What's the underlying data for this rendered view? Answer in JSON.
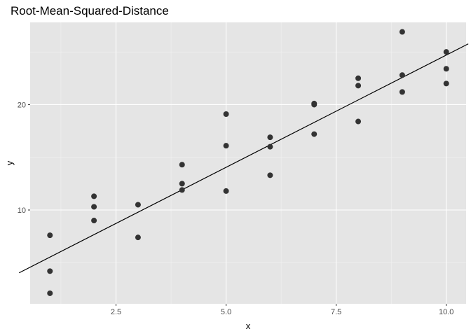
{
  "chart_data": {
    "type": "scatter",
    "title": "Root-Mean-Squared-Distance",
    "xlabel": "x",
    "ylabel": "y",
    "xlim": [
      0.55,
      10.45
    ],
    "ylim": [
      1.1,
      27.8
    ],
    "x_ticks": [
      2.5,
      5.0,
      7.5,
      10.0
    ],
    "x_tick_labels": [
      "2.5",
      "5.0",
      "7.5",
      "10.0"
    ],
    "y_ticks": [
      10,
      20
    ],
    "y_tick_labels": [
      "10",
      "20"
    ],
    "grid": true,
    "background": "#e5e5e5",
    "point_color": "#333333",
    "line_color": "#000000",
    "points": [
      {
        "x": 1,
        "y": 7.6
      },
      {
        "x": 1,
        "y": 4.2
      },
      {
        "x": 1,
        "y": 2.1
      },
      {
        "x": 2,
        "y": 11.3
      },
      {
        "x": 2,
        "y": 10.3
      },
      {
        "x": 2,
        "y": 9.0
      },
      {
        "x": 3,
        "y": 10.5
      },
      {
        "x": 3,
        "y": 7.4
      },
      {
        "x": 4,
        "y": 14.3
      },
      {
        "x": 4,
        "y": 12.5
      },
      {
        "x": 4,
        "y": 11.9
      },
      {
        "x": 5,
        "y": 19.1
      },
      {
        "x": 5,
        "y": 16.1
      },
      {
        "x": 5,
        "y": 11.8
      },
      {
        "x": 6,
        "y": 16.9
      },
      {
        "x": 6,
        "y": 16.0
      },
      {
        "x": 6,
        "y": 13.3
      },
      {
        "x": 7,
        "y": 20.1
      },
      {
        "x": 7,
        "y": 20.0
      },
      {
        "x": 7,
        "y": 17.2
      },
      {
        "x": 8,
        "y": 22.5
      },
      {
        "x": 8,
        "y": 21.8
      },
      {
        "x": 8,
        "y": 18.4
      },
      {
        "x": 9,
        "y": 26.9
      },
      {
        "x": 9,
        "y": 22.8
      },
      {
        "x": 9,
        "y": 21.2
      },
      {
        "x": 10,
        "y": 25.0
      },
      {
        "x": 10,
        "y": 23.4
      },
      {
        "x": 10,
        "y": 22.0
      }
    ],
    "line": {
      "intercept": 3.4,
      "slope": 2.13
    }
  }
}
